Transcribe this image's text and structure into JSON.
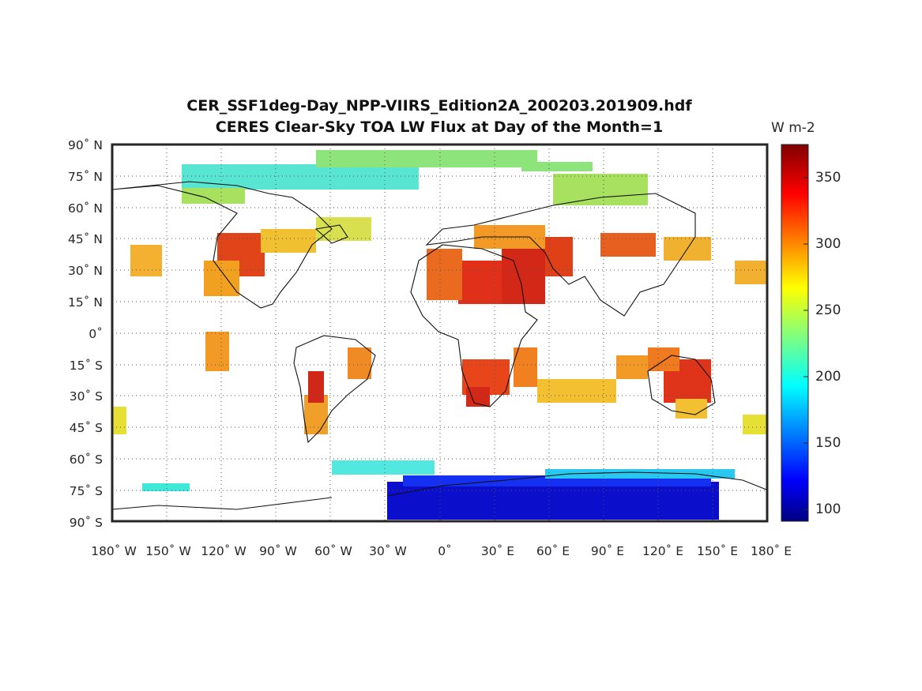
{
  "map": {
    "title_line1": "CER_SSF1deg-Day_NPP-VIIRS_Edition2A_200203.201909.hdf",
    "title_line2": "CERES Clear-Sky TOA LW Flux at Day of the Month=1",
    "projection": "equirectangular",
    "extent": {
      "lon": [
        -180,
        180
      ],
      "lat": [
        -90,
        90
      ]
    },
    "gridlines": "dotted",
    "lat_labels": [
      "90˚ N",
      "75˚ N",
      "60˚ N",
      "45˚ N",
      "30˚ N",
      "15˚ N",
      "0˚",
      "15˚ S",
      "30˚ S",
      "45˚ S",
      "60˚ S",
      "75˚ S",
      "90˚ S"
    ],
    "lon_labels": [
      "180˚ W",
      "150˚ W",
      "120˚ W",
      "90˚ W",
      "60˚ W",
      "30˚ W",
      "0˚",
      "30˚ E",
      "60˚ E",
      "90˚ E",
      "120˚ E",
      "150˚ E",
      "180˚ E"
    ]
  },
  "colorbar": {
    "unit": "W m-2",
    "colormap": "jet",
    "range": [
      90,
      375
    ],
    "ticks": [
      "100",
      "150",
      "200",
      "250",
      "300",
      "350"
    ]
  },
  "colors": {
    "very_low": "#0d10c8",
    "cyan": "#22e6e6",
    "green": "#7ee07a",
    "yellow": "#e8e83a",
    "orange": "#f28c1e",
    "red": "#e0401a",
    "dark_red": "#b81414"
  }
}
